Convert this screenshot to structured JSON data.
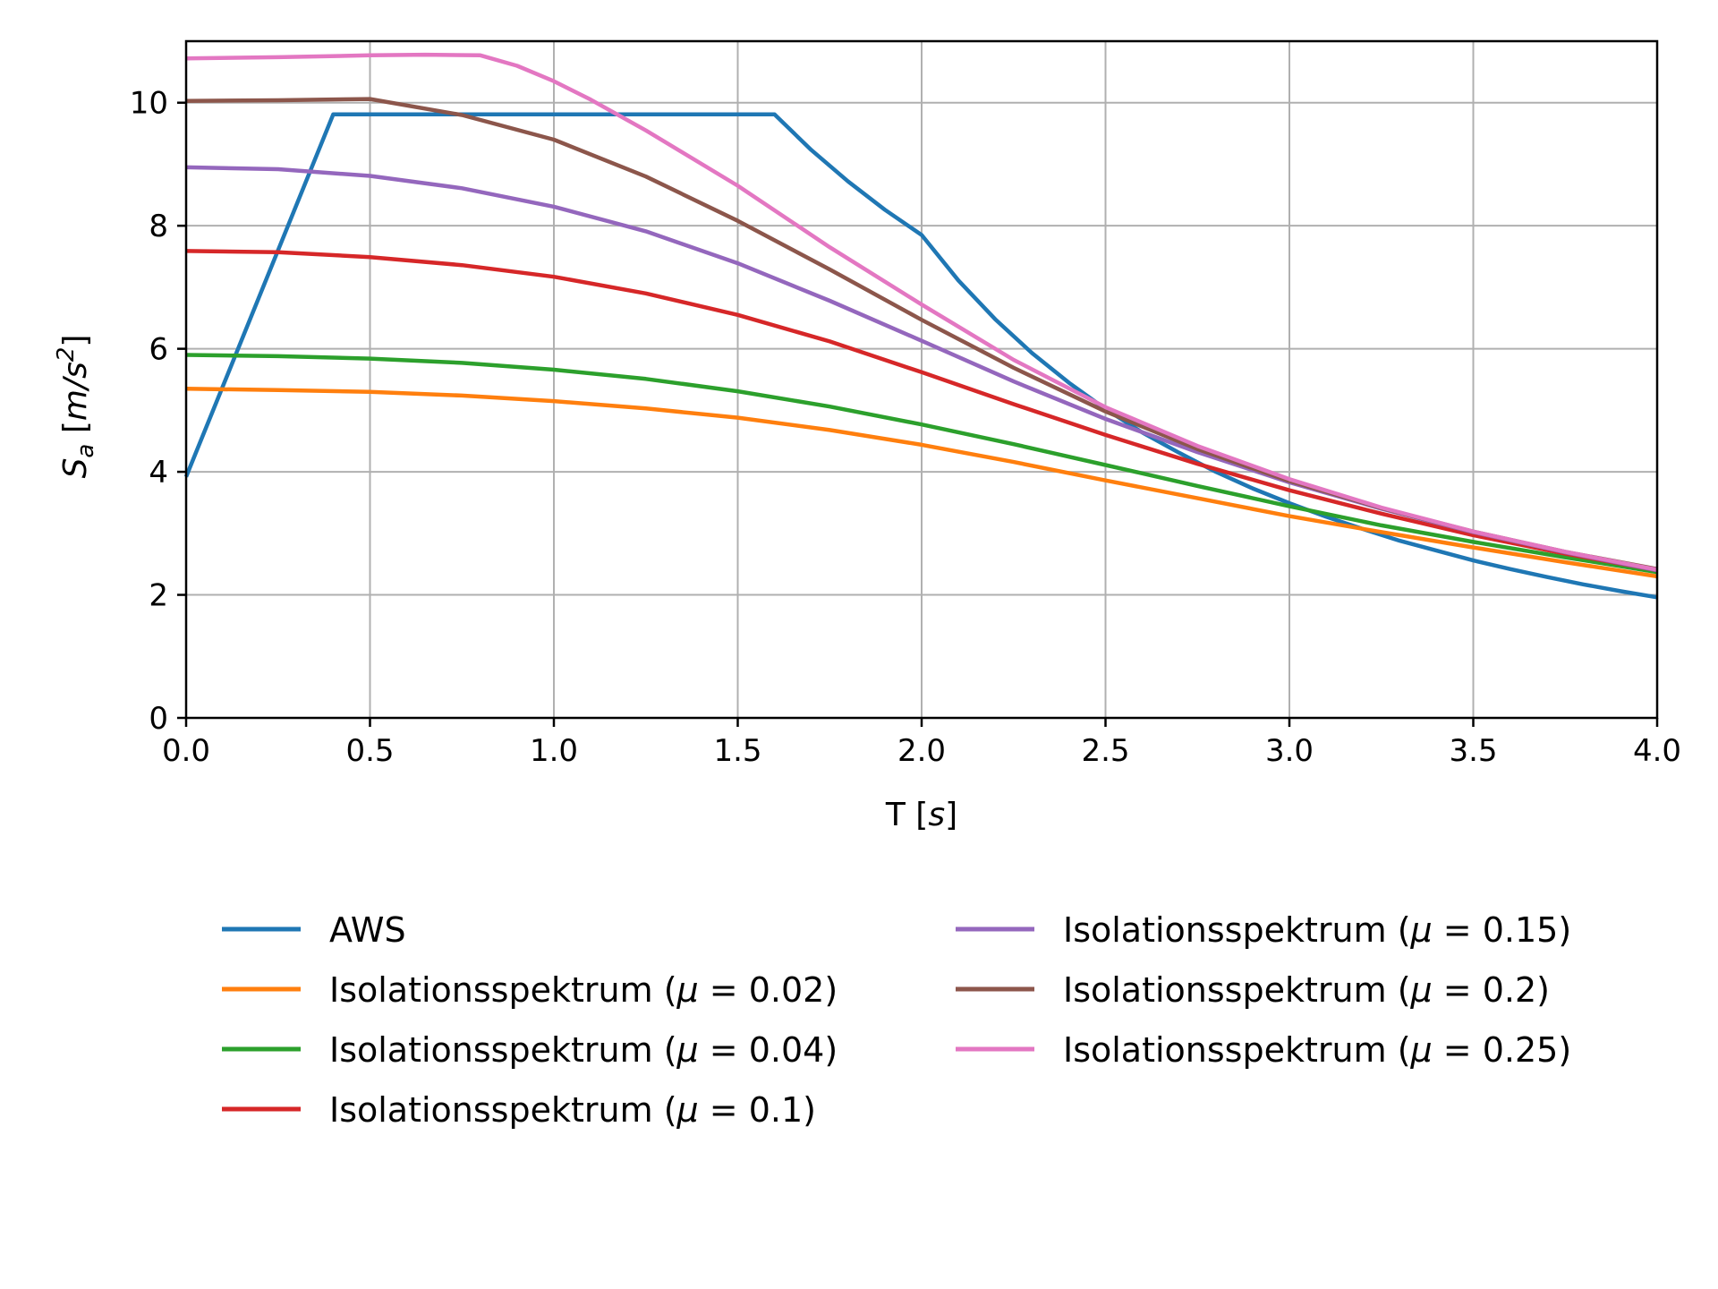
{
  "chart_data": {
    "type": "line",
    "title": "",
    "xlabel_main": "T ",
    "xlabel_unit": "s",
    "ylabel_main": "S",
    "ylabel_sub": "a",
    "ylabel_unit_prefix": "m/s",
    "ylabel_unit_exp": "2",
    "xlim": [
      0,
      4.0
    ],
    "ylim": [
      0,
      11
    ],
    "xticks": [
      0.0,
      0.5,
      1.0,
      1.5,
      2.0,
      2.5,
      3.0,
      3.5,
      4.0
    ],
    "xtick_labels": [
      "0.0",
      "0.5",
      "1.0",
      "1.5",
      "2.0",
      "2.5",
      "3.0",
      "3.5",
      "4.0"
    ],
    "yticks": [
      0,
      2,
      4,
      6,
      8,
      10
    ],
    "ytick_labels": [
      "0",
      "2",
      "4",
      "6",
      "8",
      "10"
    ],
    "grid": true,
    "legend_position": "below",
    "legend_columns": 2,
    "series": [
      {
        "name": "AWS",
        "color": "#1f77b4",
        "x": [
          0,
          0.4,
          1.6,
          1.7,
          1.8,
          1.9,
          2.0,
          2.1,
          2.2,
          2.3,
          2.4,
          2.5,
          2.6,
          2.7,
          2.8,
          2.9,
          3.0,
          3.1,
          3.2,
          3.3,
          3.4,
          3.5,
          3.6,
          3.7,
          3.8,
          3.9,
          4.0
        ],
        "y": [
          3.92,
          9.81,
          9.81,
          9.23,
          8.72,
          8.26,
          7.85,
          7.11,
          6.48,
          5.93,
          5.45,
          5.02,
          4.64,
          4.31,
          4.0,
          3.73,
          3.49,
          3.27,
          3.07,
          2.88,
          2.72,
          2.56,
          2.42,
          2.29,
          2.17,
          2.06,
          1.96
        ]
      },
      {
        "name": "Isolationsspektrum (μ = 0.02)",
        "name_prefix": "Isolationsspektrum (",
        "name_mu": "μ",
        "name_suffix": " = 0.02)",
        "color": "#ff7f0e",
        "x": [
          0,
          0.25,
          0.5,
          0.75,
          1.0,
          1.25,
          1.5,
          1.75,
          2.0,
          2.25,
          2.5,
          2.75,
          3.0,
          3.25,
          3.5,
          3.75,
          4.0
        ],
        "y": [
          5.35,
          5.33,
          5.3,
          5.24,
          5.15,
          5.03,
          4.88,
          4.68,
          4.44,
          4.16,
          3.86,
          3.57,
          3.28,
          3.02,
          2.77,
          2.53,
          2.3
        ]
      },
      {
        "name": "Isolationsspektrum (μ = 0.04)",
        "name_prefix": "Isolationsspektrum (",
        "name_mu": "μ",
        "name_suffix": " = 0.04)",
        "color": "#2ca02c",
        "x": [
          0,
          0.25,
          0.5,
          0.75,
          1.0,
          1.25,
          1.5,
          1.75,
          2.0,
          2.25,
          2.5,
          2.75,
          3.0,
          3.25,
          3.5,
          3.75,
          4.0
        ],
        "y": [
          5.9,
          5.88,
          5.84,
          5.77,
          5.66,
          5.51,
          5.31,
          5.06,
          4.77,
          4.45,
          4.11,
          3.77,
          3.44,
          3.13,
          2.86,
          2.61,
          2.37
        ]
      },
      {
        "name": "Isolationsspektrum (μ = 0.1)",
        "name_prefix": "Isolationsspektrum (",
        "name_mu": "μ",
        "name_suffix": " = 0.1)",
        "color": "#d62728",
        "x": [
          0,
          0.25,
          0.5,
          0.75,
          1.0,
          1.25,
          1.5,
          1.75,
          2.0,
          2.25,
          2.5,
          2.75,
          3.0,
          3.25,
          3.5,
          3.75,
          4.0
        ],
        "y": [
          7.59,
          7.57,
          7.49,
          7.36,
          7.17,
          6.9,
          6.55,
          6.12,
          5.62,
          5.1,
          4.6,
          4.13,
          3.7,
          3.32,
          2.97,
          2.67,
          2.4
        ]
      },
      {
        "name": "Isolationsspektrum (μ = 0.15)",
        "name_prefix": "Isolationsspektrum (",
        "name_mu": "μ",
        "name_suffix": " = 0.15)",
        "color": "#9467bd",
        "x": [
          0,
          0.25,
          0.5,
          0.75,
          1.0,
          1.25,
          1.5,
          1.75,
          2.0,
          2.25,
          2.5,
          2.75,
          3.0,
          3.25,
          3.5,
          3.75,
          4.0
        ],
        "y": [
          8.95,
          8.92,
          8.81,
          8.61,
          8.31,
          7.91,
          7.39,
          6.78,
          6.13,
          5.47,
          4.86,
          4.32,
          3.83,
          3.4,
          3.02,
          2.69,
          2.4
        ]
      },
      {
        "name": "Isolationsspektrum (μ = 0.2)",
        "name_prefix": "Isolationsspektrum (",
        "name_mu": "μ",
        "name_suffix": " = 0.2)",
        "color": "#8c564b",
        "x": [
          0,
          0.25,
          0.5,
          0.75,
          1.0,
          1.25,
          1.5,
          1.75,
          2.0,
          2.25,
          2.5,
          2.75,
          3.0,
          3.25,
          3.5,
          3.75,
          4.0
        ],
        "y": [
          10.03,
          10.04,
          10.06,
          9.8,
          9.4,
          8.8,
          8.08,
          7.29,
          6.47,
          5.69,
          4.98,
          4.37,
          3.85,
          3.41,
          3.03,
          2.7,
          2.42
        ]
      },
      {
        "name": "Isolationsspektrum (μ = 0.25)",
        "name_prefix": "Isolationsspektrum (",
        "name_mu": "μ",
        "name_suffix": " = 0.25)",
        "color": "#e377c2",
        "x": [
          0,
          0.25,
          0.5,
          0.65,
          0.8,
          0.9,
          1.0,
          1.1,
          1.25,
          1.5,
          1.75,
          2.0,
          2.25,
          2.5,
          2.75,
          3.0,
          3.25,
          3.5,
          3.75,
          4.0
        ],
        "y": [
          10.72,
          10.74,
          10.77,
          10.78,
          10.77,
          10.6,
          10.35,
          10.05,
          9.55,
          8.65,
          7.65,
          6.72,
          5.82,
          5.05,
          4.42,
          3.88,
          3.42,
          3.03,
          2.7,
          2.41
        ]
      }
    ]
  }
}
